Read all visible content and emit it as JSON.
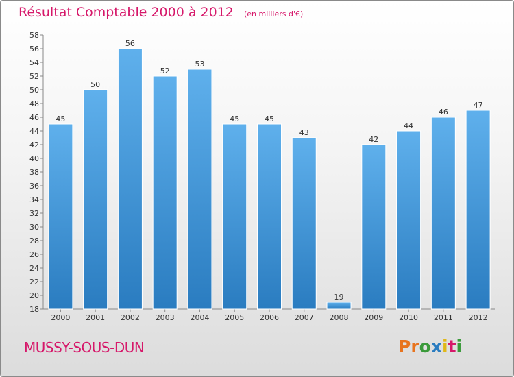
{
  "header": {
    "title": "Résultat Comptable 2000 à 2012",
    "subtitle": "(en milliers d'€)"
  },
  "footer": {
    "location": "MUSSY-SOUS-DUN",
    "brand": "Proxiti"
  },
  "colors": {
    "title": "#d6186a",
    "bar_light": "#5fb0ec",
    "bar_dark": "#2a7cc0",
    "brand_letters": [
      "#e8741e",
      "#e8741e",
      "#3a9a3a",
      "#2a7cc0",
      "#e0b818",
      "#d6186a",
      "#3a9a3a"
    ]
  },
  "chart_data": {
    "type": "bar",
    "categories": [
      "2000",
      "2001",
      "2002",
      "2003",
      "2004",
      "2005",
      "2006",
      "2007",
      "2008",
      "2009",
      "2010",
      "2011",
      "2012"
    ],
    "values": [
      45,
      50,
      56,
      52,
      53,
      45,
      45,
      43,
      19,
      42,
      44,
      46,
      47
    ],
    "ylim": [
      18,
      58
    ],
    "yticks": [
      18,
      20,
      22,
      24,
      26,
      28,
      30,
      32,
      34,
      36,
      38,
      40,
      42,
      44,
      46,
      48,
      50,
      52,
      54,
      56,
      58
    ],
    "xlabel": "",
    "ylabel": "",
    "grid": false
  }
}
